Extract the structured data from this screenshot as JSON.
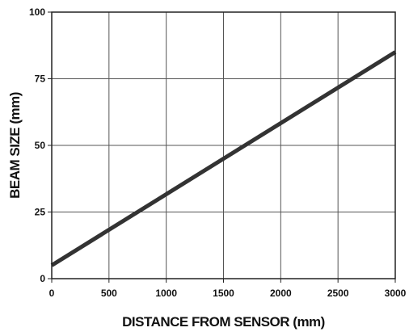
{
  "chart_data": {
    "type": "line",
    "title": "",
    "xlabel": "DISTANCE FROM SENSOR (mm)",
    "ylabel": "BEAM SIZE (mm)",
    "xlim": [
      0,
      3000
    ],
    "ylim": [
      0,
      100
    ],
    "x_ticks": [
      "0",
      "500",
      "1000",
      "1500",
      "2000",
      "2500",
      "3000"
    ],
    "y_ticks": [
      "0",
      "25",
      "50",
      "75",
      "100"
    ],
    "grid": true,
    "legend": "none",
    "series": [
      {
        "x": [
          0,
          3000
        ],
        "y": [
          5,
          85
        ],
        "color": "#333333"
      }
    ]
  }
}
